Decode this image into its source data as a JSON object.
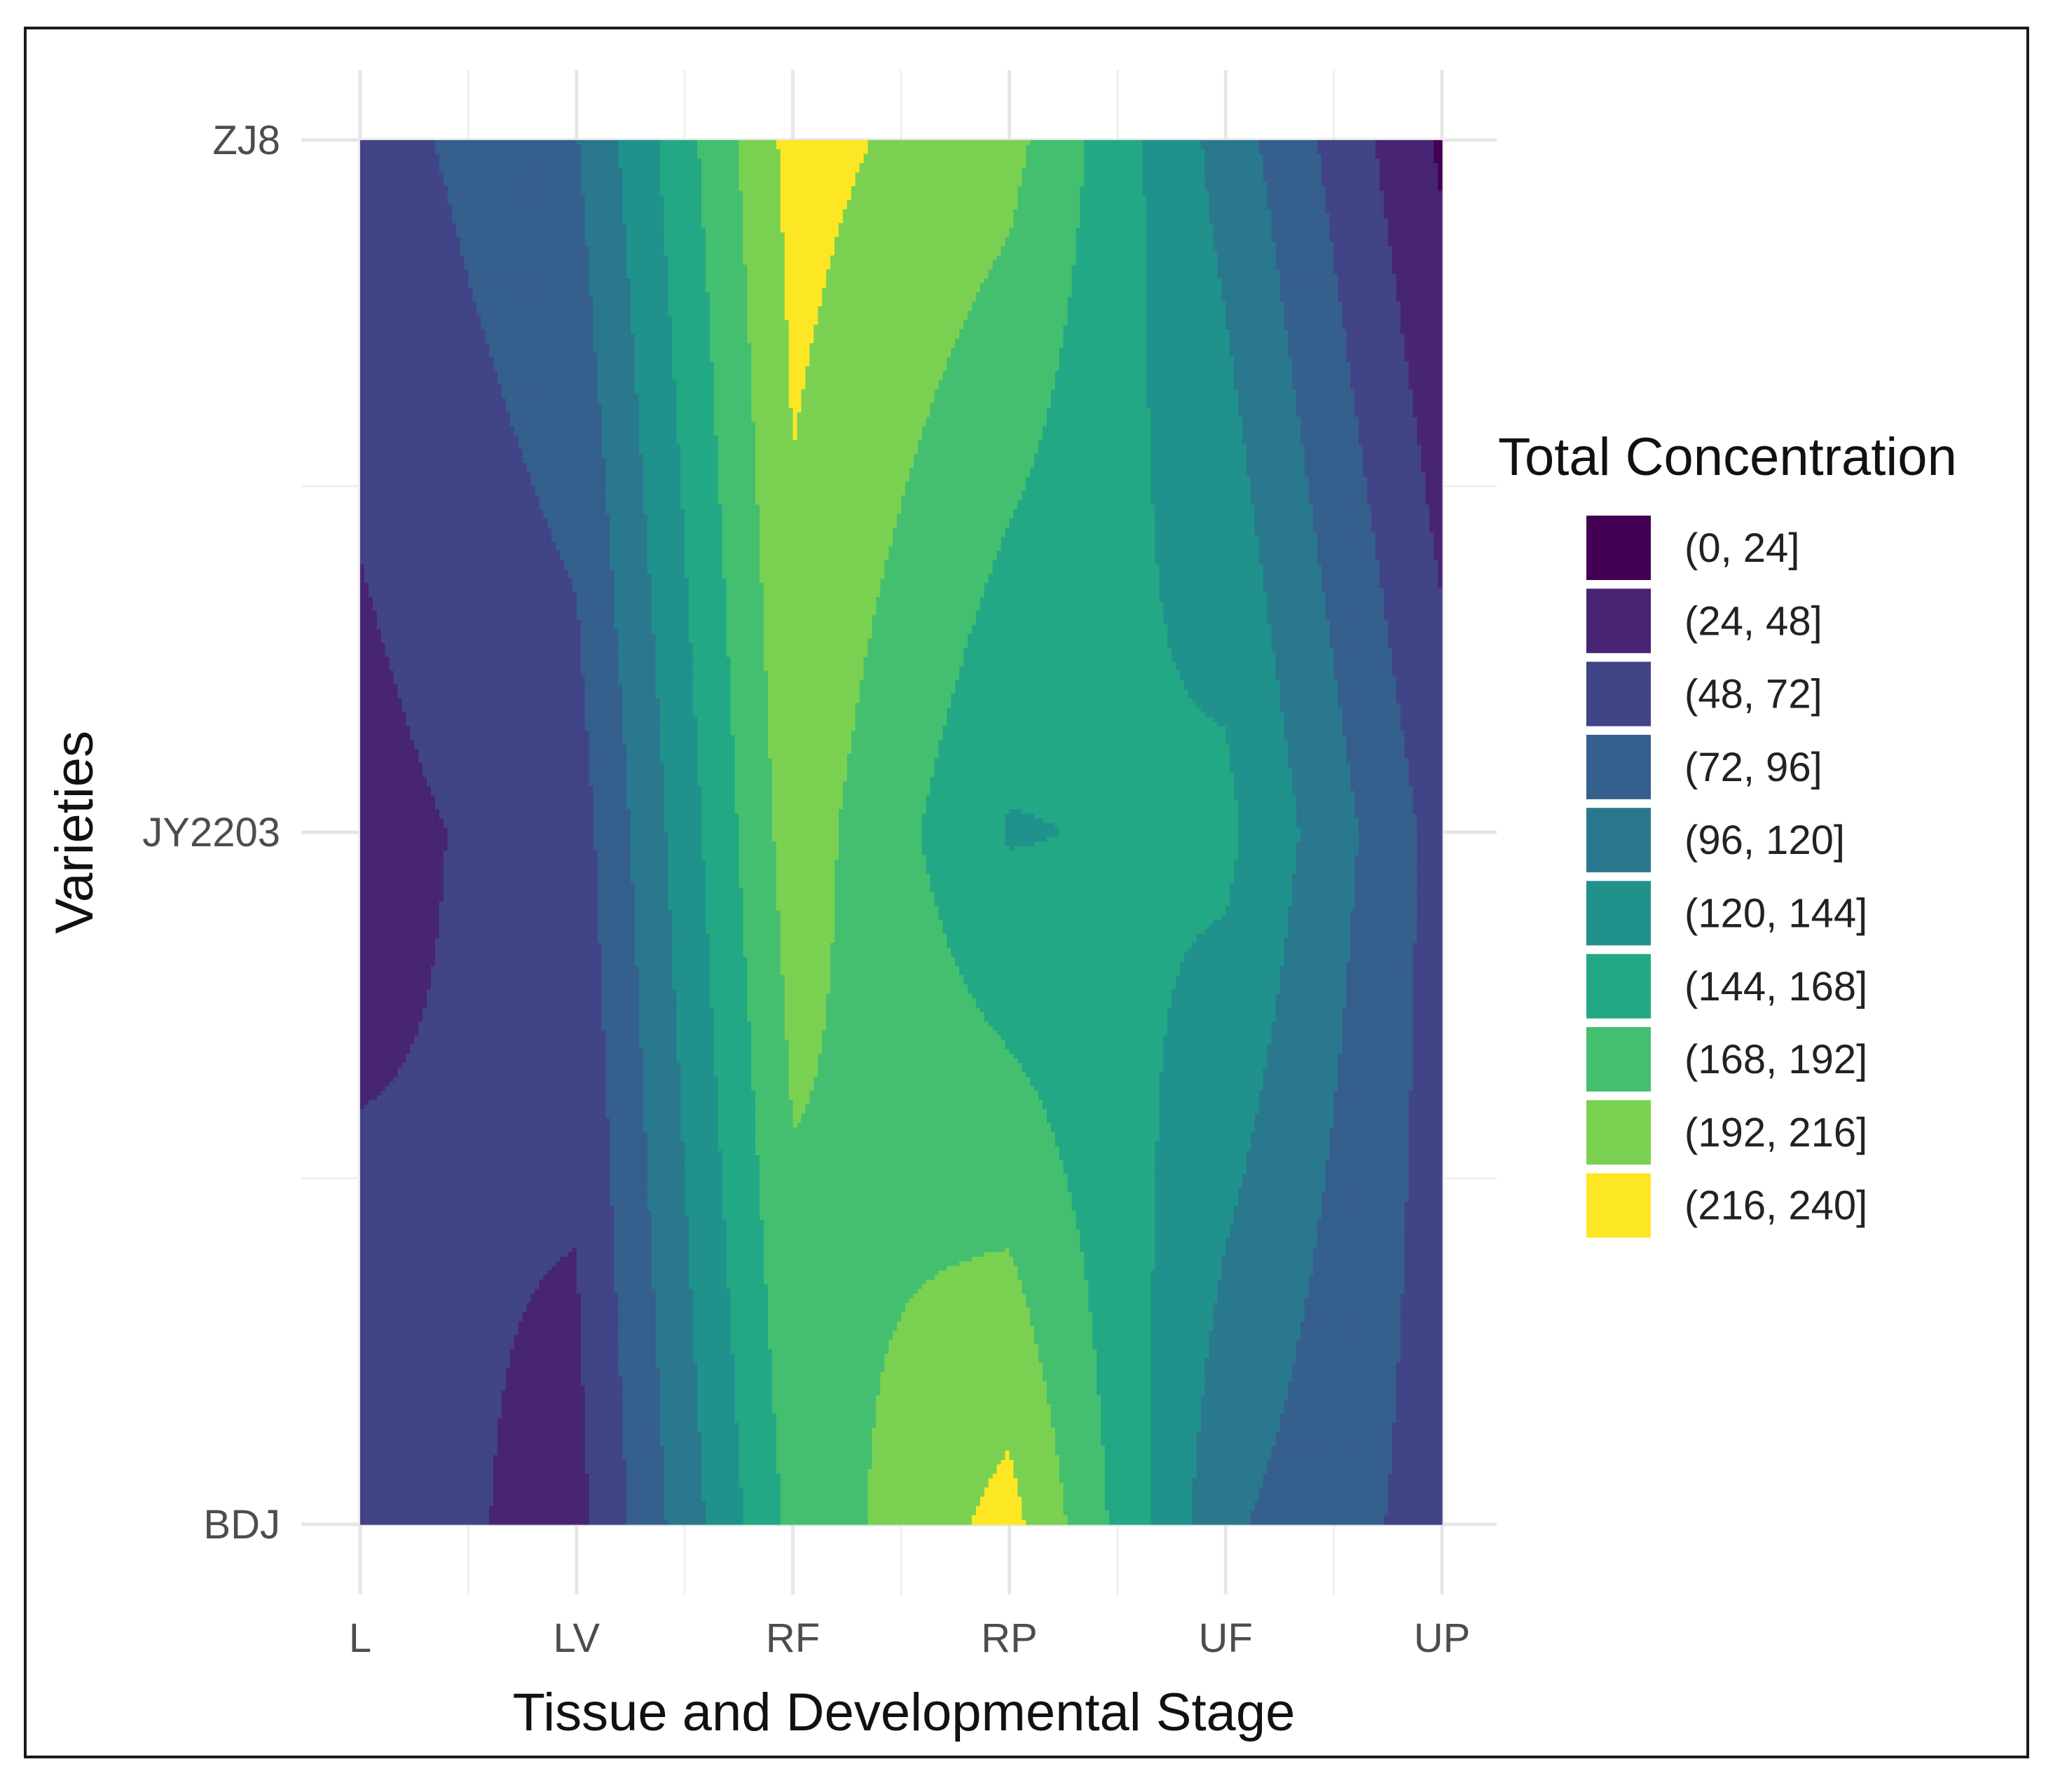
{
  "chart_data": {
    "type": "heatmap",
    "subtype": "filled-contour",
    "xlabel": "Tissue and Developmental Stage",
    "ylabel": "Varieties",
    "x_categories": [
      "L",
      "LV",
      "RF",
      "RP",
      "UF",
      "UP"
    ],
    "y_categories": [
      "BDJ",
      "JY2203",
      "ZJ8"
    ],
    "z": {
      "ZJ8": [
        60,
        95,
        225,
        200,
        110,
        20
      ],
      "JY2203": [
        40,
        60,
        205,
        142,
        150,
        62
      ],
      "BDJ": [
        60,
        40,
        175,
        225,
        100,
        62
      ]
    },
    "legend": {
      "title": "Total Concentration",
      "position": "right",
      "bins": [
        {
          "label": "(0, 24]",
          "color": "#440154"
        },
        {
          "label": "(24, 48]",
          "color": "#482475"
        },
        {
          "label": "(48, 72]",
          "color": "#414487"
        },
        {
          "label": "(72, 96]",
          "color": "#355f8d"
        },
        {
          "label": "(96, 120]",
          "color": "#2a788e"
        },
        {
          "label": "(120, 144]",
          "color": "#21918c"
        },
        {
          "label": "(144, 168]",
          "color": "#22a884"
        },
        {
          "label": "(168, 192]",
          "color": "#44bf70"
        },
        {
          "label": "(192, 216]",
          "color": "#7ad151"
        },
        {
          "label": "(216, 240]",
          "color": "#fde725"
        }
      ]
    },
    "grid": true,
    "theme": "minimal"
  }
}
